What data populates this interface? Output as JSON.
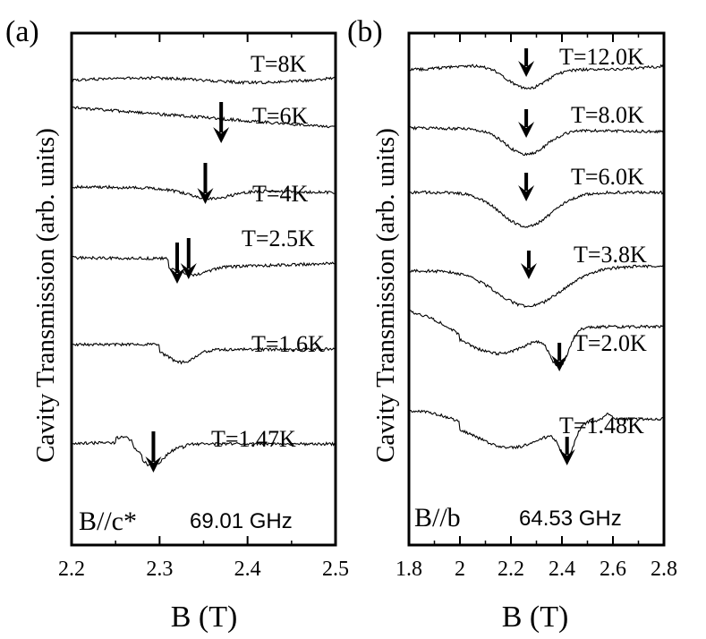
{
  "chart_data": [
    {
      "type": "line",
      "panel_label": "(a)",
      "xlabel": "B (T)",
      "ylabel": "Cavity Transmission (arb. units)",
      "xlim": [
        2.2,
        2.5
      ],
      "x_ticks": [
        2.2,
        2.3,
        2.4,
        2.5
      ],
      "x_tick_labels": [
        "2.2",
        "2.3",
        "2.4",
        "2.5"
      ],
      "orientation_label": "B//c*",
      "frequency_label": "69.01 GHz",
      "series": [
        {
          "name": "T=8K",
          "label": "T=8K",
          "resonance_B": null
        },
        {
          "name": "T=6K",
          "label": "T=6K",
          "resonance_B": 2.37
        },
        {
          "name": "T=4K",
          "label": "T=4K",
          "resonance_B": 2.352
        },
        {
          "name": "T=2.5K",
          "label": "T=2.5K",
          "resonance_B": 2.333
        },
        {
          "name": "T=1.6K",
          "label": "T=1.6K",
          "resonance_B": 2.32
        },
        {
          "name": "T=1.47K",
          "label": "T=1.47K",
          "resonance_B": 2.293
        }
      ]
    },
    {
      "type": "line",
      "panel_label": "(b)",
      "xlabel": "B (T)",
      "ylabel": "Cavity Transmission (arb. units)",
      "xlim": [
        1.8,
        2.8
      ],
      "x_ticks": [
        1.8,
        2.0,
        2.2,
        2.4,
        2.6,
        2.8
      ],
      "x_tick_labels": [
        "1.8",
        "2",
        "2.2",
        "2.4",
        "2.6",
        "2.8"
      ],
      "orientation_label": "B//b",
      "frequency_label": "64.53 GHz",
      "series": [
        {
          "name": "T=12.0K",
          "label": "T=12.0K",
          "resonance_B": 2.26
        },
        {
          "name": "T=8.0K",
          "label": "T=8.0K",
          "resonance_B": 2.26
        },
        {
          "name": "T=6.0K",
          "label": "T=6.0K",
          "resonance_B": 2.26
        },
        {
          "name": "T=3.8K",
          "label": "T=3.8K",
          "resonance_B": 2.27
        },
        {
          "name": "T=2.0K",
          "label": "T=2.0K",
          "resonance_B": 2.39
        },
        {
          "name": "T=1.48K",
          "label": "T=1.48K",
          "resonance_B": 2.42
        }
      ]
    }
  ]
}
